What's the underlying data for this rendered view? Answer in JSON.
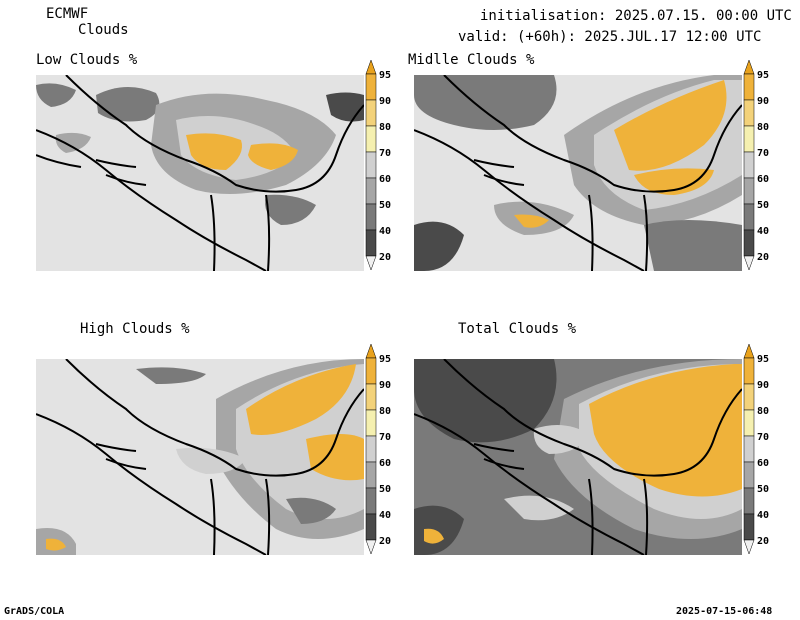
{
  "header": {
    "model": "ECMWF",
    "field": "Clouds",
    "init_line": "initialisation: 2025.07.15. 00:00 UTC",
    "valid_line": "valid: (+60h): 2025.JUL.17 12:00 UTC"
  },
  "panels": [
    {
      "id": "low",
      "title": "Low Clouds %"
    },
    {
      "id": "middle",
      "title": "Midlle Clouds %"
    },
    {
      "id": "high",
      "title": "High Clouds %"
    },
    {
      "id": "total",
      "title": "Total Clouds %"
    }
  ],
  "colorbar": {
    "levels": [
      "20",
      "40",
      "50",
      "60",
      "70",
      "80",
      "90",
      "95"
    ],
    "colors": [
      "#f0f0f0",
      "#4a4a4a",
      "#7a7a7a",
      "#a6a6a6",
      "#d0d0d0",
      "#f5f0b0",
      "#f3d27a",
      "#efb23a",
      "#e9a21c"
    ]
  },
  "footer": {
    "left": "GrADS/COLA",
    "right": "2025-07-15-06:48"
  }
}
